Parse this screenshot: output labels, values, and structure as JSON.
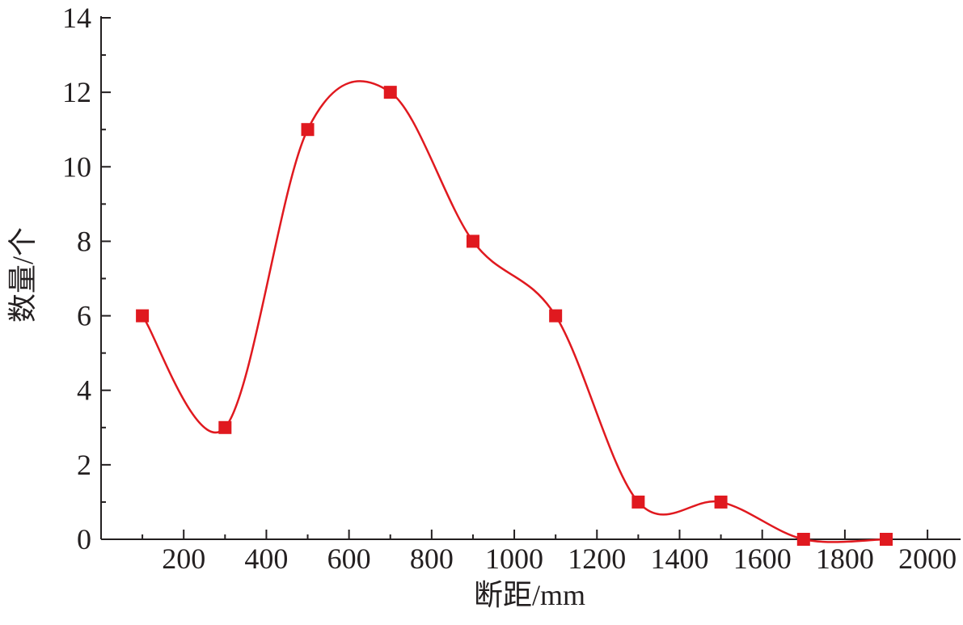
{
  "chart_data": {
    "type": "line",
    "xlabel": "断距/mm",
    "ylabel": "数量/个",
    "x": [
      100,
      300,
      500,
      700,
      900,
      1100,
      1300,
      1500,
      1700,
      1900
    ],
    "series": [
      {
        "color": "#e0191f",
        "values": [
          6,
          3,
          11,
          12,
          8,
          6,
          1,
          1,
          0,
          0
        ]
      }
    ],
    "xlim": [
      0,
      2080
    ],
    "ylim": [
      0,
      14
    ],
    "xticks": [
      200,
      400,
      600,
      800,
      1000,
      1200,
      1400,
      1600,
      1800,
      2000
    ],
    "yticks": [
      0,
      2,
      4,
      6,
      8,
      10,
      12,
      14
    ],
    "xminorticks": [
      100,
      300,
      500,
      700,
      900,
      1100,
      1300,
      1500,
      1700,
      1900
    ],
    "yminorticks": [
      1,
      3,
      5,
      7,
      9,
      11,
      13
    ],
    "smooth": true
  }
}
